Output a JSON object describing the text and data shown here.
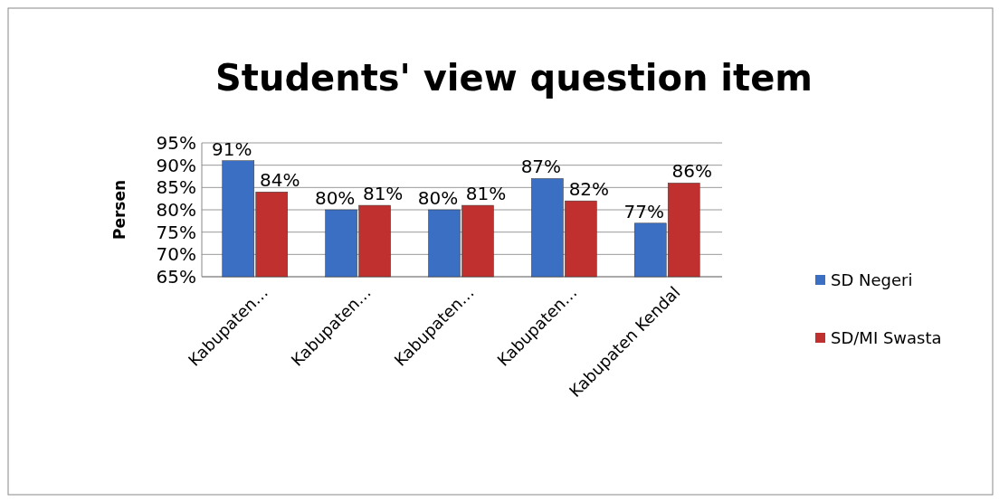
{
  "chart_data": {
    "type": "bar",
    "title": "Students' view question item",
    "ylabel": "Persen",
    "categories": [
      "Kabupaten…",
      "Kabupaten…",
      "Kabupaten…",
      "Kabupaten…",
      "Kabupaten Kendal"
    ],
    "series": [
      {
        "name": "SD Negeri",
        "color": "#3b6fc4",
        "values": [
          91,
          80,
          80,
          87,
          77
        ],
        "value_labels": [
          "91%",
          "80%",
          "80%",
          "87%",
          "77%"
        ]
      },
      {
        "name": "SD/MI Swasta",
        "color": "#c0302e",
        "values": [
          84,
          81,
          81,
          82,
          86
        ],
        "value_labels": [
          "84%",
          "81%",
          "81%",
          "82%",
          "86%"
        ]
      }
    ],
    "ylim": [
      65,
      95
    ],
    "yticks": [
      {
        "value": 65,
        "label": "65%"
      },
      {
        "value": 70,
        "label": "70%"
      },
      {
        "value": 75,
        "label": "75%"
      },
      {
        "value": 80,
        "label": "80%"
      },
      {
        "value": 85,
        "label": "85%"
      },
      {
        "value": 90,
        "label": "90%"
      },
      {
        "value": 95,
        "label": "95%"
      }
    ],
    "grid": "y",
    "legend": "right"
  }
}
